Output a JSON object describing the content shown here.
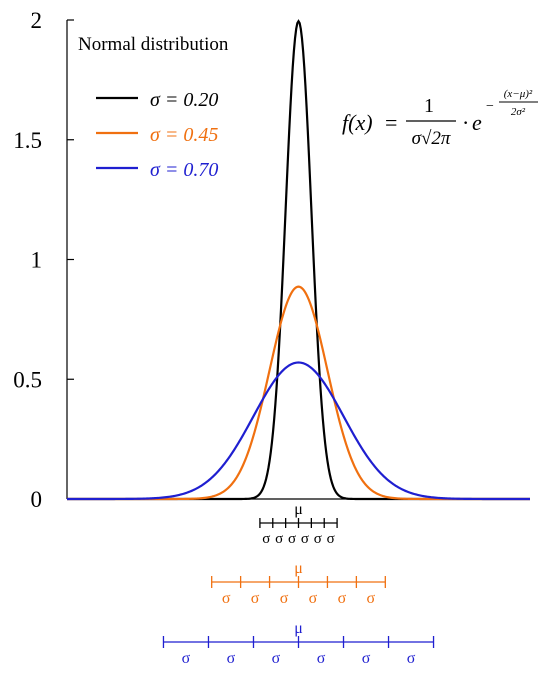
{
  "chart_data": {
    "type": "line",
    "title": "Normal distribution",
    "formula": {
      "lhs": "f(x)",
      "equals": "=",
      "numerator": "1",
      "denominator": "σ√2π",
      "dot": "·",
      "base": "e",
      "exp_sign": "−",
      "exp_numerator": "(x−μ)²",
      "exp_denominator": "2σ²"
    },
    "mu": 0,
    "mu_label": "μ",
    "sigma_label": "σ",
    "xlim": [
      -3.6,
      3.6
    ],
    "ylim": [
      0,
      2
    ],
    "yticks": [
      0,
      0.5,
      1,
      1.5,
      2
    ],
    "ytick_labels": [
      "0",
      "0.5",
      "1",
      "1.5",
      "2"
    ],
    "grid": false,
    "legend_position": "top-left",
    "series": [
      {
        "name": "σ = 0.20",
        "sigma": 0.2,
        "color": "#000000",
        "label_color": "#000000"
      },
      {
        "name": "σ = 0.45",
        "sigma": 0.45,
        "color": "#f07010",
        "label_color": "#f07010"
      },
      {
        "name": "σ = 0.70",
        "sigma": 0.7,
        "color": "#1f1fd0",
        "label_color": "#1f1fd0"
      }
    ],
    "sigma_rulers": [
      {
        "series": 0,
        "color": "#000000",
        "show_mu": true
      },
      {
        "series": 1,
        "color": "#f07010",
        "show_mu": true
      },
      {
        "series": 2,
        "color": "#1f1fd0",
        "show_mu": true
      }
    ]
  }
}
